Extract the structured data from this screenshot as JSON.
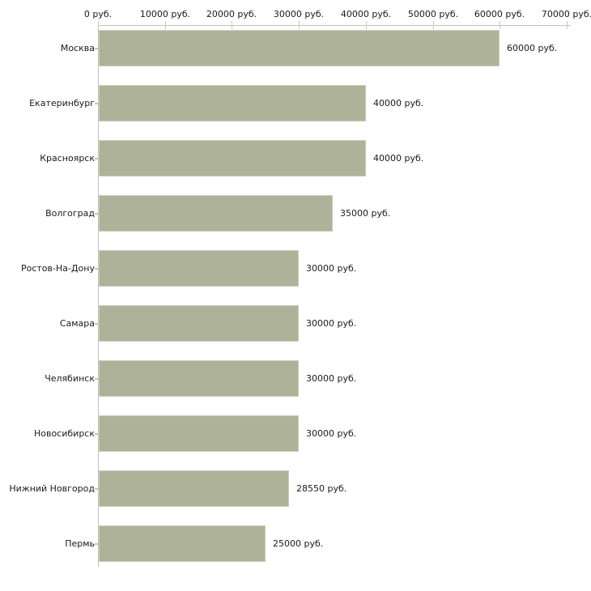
{
  "chart_data": {
    "type": "bar",
    "orientation": "horizontal",
    "title": "",
    "xlabel": "",
    "ylabel": "",
    "unit": "руб.",
    "grid": false,
    "legend": false,
    "categories": [
      "Москва",
      "Екатеринбург",
      "Красноярск",
      "Волгоград",
      "Ростов-На-Дону",
      "Самара",
      "Челябинск",
      "Новосибирск",
      "Нижний Новгород",
      "Пермь"
    ],
    "values": [
      60000,
      40000,
      40000,
      35000,
      30000,
      30000,
      30000,
      30000,
      28550,
      25000
    ],
    "value_labels": [
      "60000 руб.",
      "40000 руб.",
      "40000 руб.",
      "35000 руб.",
      "30000 руб.",
      "30000 руб.",
      "30000 руб.",
      "30000 руб.",
      "28550 руб.",
      "25000 руб."
    ],
    "x_axis": {
      "position": "top",
      "min": 0,
      "max": 70000,
      "tick_step": 10000,
      "tick_labels": [
        "0 руб.",
        "10000 руб.",
        "20000 руб.",
        "30000 руб.",
        "40000 руб.",
        "50000 руб.",
        "60000 руб.",
        "70000 руб."
      ]
    }
  },
  "colors": {
    "background": "#ffffff",
    "bar_fill": "#adb299",
    "bar_border": "#c9cdb9",
    "axis_line": "#c0c0c0",
    "tick_mark": "#c9c9a4",
    "text": "#1a1a1a"
  }
}
